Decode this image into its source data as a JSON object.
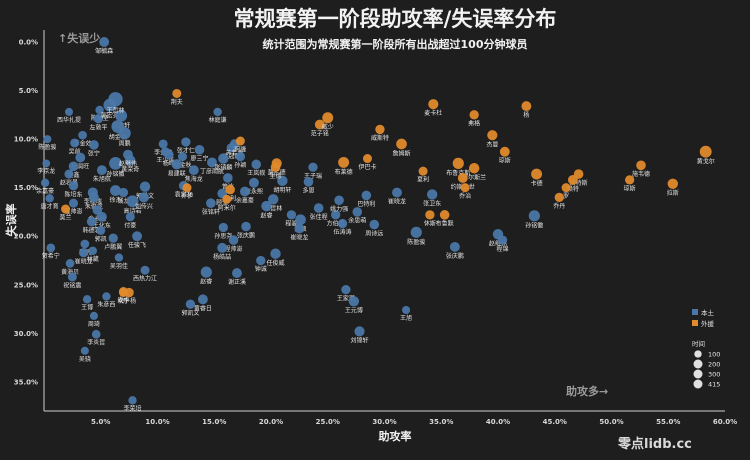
{
  "chart_data": {
    "type": "scatter",
    "title": "常规赛第一阶段助攻率/失误率分布",
    "subtitle": "统计范围为常规赛第一阶段所有出战超过100分钟球员",
    "xlabel": "助攻率",
    "ylabel": "失误率",
    "xlim": [
      0,
      60
    ],
    "ylim": [
      0,
      38
    ],
    "y_inverted": true,
    "x_ticks": [
      "5.0%",
      "10.0%",
      "15.0%",
      "20.0%",
      "25.0%",
      "30.0%",
      "35.0%",
      "40.0%",
      "45.0%",
      "50.0%",
      "55.0%",
      "60.0%"
    ],
    "y_ticks": [
      "0.0%",
      "5.0%",
      "10.0%",
      "15.0%",
      "20.0%",
      "25.0%",
      "30.0%",
      "35.0%"
    ],
    "annotations": {
      "top_left": "↑失误少",
      "bottom_right": "助攻多→"
    },
    "grid": false,
    "legend_position": "bottom-right",
    "legend": {
      "colors": [
        {
          "label": "本土",
          "color": "#4a77a8"
        },
        {
          "label": "外援",
          "color": "#e08a2c"
        }
      ],
      "size_title": "时间",
      "sizes": [
        100,
        200,
        300,
        415
      ]
    },
    "series": [
      {
        "name": "本土",
        "color": "#4a77a8",
        "points": [
          {
            "label": "邹毓森",
            "x": 5.3,
            "y": 0.0,
            "size": 180
          },
          {
            "label": "西华扎提",
            "x": 2.2,
            "y": 7.2,
            "size": 120
          },
          {
            "label": "陈林坚",
            "x": 4.9,
            "y": 7.0,
            "size": 130
          },
          {
            "label": "左敦平",
            "x": 4.8,
            "y": 7.9,
            "size": 160
          },
          {
            "label": "郭宏亮",
            "x": 5.8,
            "y": 6.5,
            "size": 300
          },
          {
            "label": "刘志轩",
            "x": 6.8,
            "y": 7.6,
            "size": 260
          },
          {
            "label": "胡金秋",
            "x": 6.5,
            "y": 8.7,
            "size": 300
          },
          {
            "label": "王哲林",
            "x": 6.3,
            "y": 5.9,
            "size": 380
          },
          {
            "label": "周鹏",
            "x": 7.1,
            "y": 9.4,
            "size": 280
          },
          {
            "label": "李金效",
            "x": 3.4,
            "y": 9.6,
            "size": 140
          },
          {
            "label": "张宁",
            "x": 4.4,
            "y": 10.6,
            "size": 170
          },
          {
            "label": "陈盈骏",
            "x": 0.3,
            "y": 10.0,
            "size": 120
          },
          {
            "label": "吴前",
            "x": 2.7,
            "y": 10.4,
            "size": 150
          },
          {
            "label": "杜润旺",
            "x": 3.2,
            "y": 11.9,
            "size": 180
          },
          {
            "label": "金鑫",
            "x": 2.6,
            "y": 12.8,
            "size": 170
          },
          {
            "label": "孙铭徽",
            "x": 6.3,
            "y": 12.5,
            "size": 300
          },
          {
            "label": "朱旭航",
            "x": 5.1,
            "y": 13.2,
            "size": 180
          },
          {
            "label": "李京龙",
            "x": 0.2,
            "y": 12.5,
            "size": 110
          },
          {
            "label": "赵岩昊",
            "x": 2.2,
            "y": 13.6,
            "size": 150
          },
          {
            "label": "黄荣奇",
            "x": 7.6,
            "y": 12.2,
            "size": 200
          },
          {
            "label": "赵继伟",
            "x": 7.4,
            "y": 11.6,
            "size": 180
          },
          {
            "label": "余嘉豪",
            "x": 0.1,
            "y": 14.5,
            "size": 130
          },
          {
            "label": "陈培东",
            "x": 2.6,
            "y": 14.8,
            "size": 160
          },
          {
            "label": "李祥瑞",
            "x": 4.3,
            "y": 15.5,
            "size": 190
          },
          {
            "label": "钱龙",
            "x": 7.0,
            "y": 15.5,
            "size": 160
          },
          {
            "label": "唐才育",
            "x": 0.5,
            "y": 16.1,
            "size": 130
          },
          {
            "label": "程帅澎",
            "x": 2.6,
            "y": 16.6,
            "size": 150
          },
          {
            "label": "朱俊龙",
            "x": 4.4,
            "y": 16.0,
            "size": 180
          },
          {
            "label": "徐杰",
            "x": 6.3,
            "y": 15.3,
            "size": 220
          },
          {
            "label": "郭昊文",
            "x": 8.9,
            "y": 14.9,
            "size": 200
          },
          {
            "label": "高诗岩",
            "x": 7.8,
            "y": 16.4,
            "size": 260
          },
          {
            "label": "刘传兴",
            "x": 8.8,
            "y": 16.0,
            "size": 190
          },
          {
            "label": "俞长栋",
            "x": 4.7,
            "y": 17.3,
            "size": 170
          },
          {
            "label": "王化东",
            "x": 5.1,
            "y": 18.0,
            "size": 180
          },
          {
            "label": "付豪",
            "x": 7.6,
            "y": 18.0,
            "size": 150
          },
          {
            "label": "韩德君",
            "x": 4.2,
            "y": 18.5,
            "size": 170
          },
          {
            "label": "郭凯",
            "x": 5.0,
            "y": 19.4,
            "size": 150
          },
          {
            "label": "卢鹏翼",
            "x": 6.1,
            "y": 20.2,
            "size": 160
          },
          {
            "label": "任骏飞",
            "x": 8.2,
            "y": 20.0,
            "size": 180
          },
          {
            "label": "张帆",
            "x": 3.6,
            "y": 20.8,
            "size": 140
          },
          {
            "label": "林葳",
            "x": 4.3,
            "y": 21.5,
            "size": 130
          },
          {
            "label": "贺希宁",
            "x": 0.6,
            "y": 21.2,
            "size": 140
          },
          {
            "label": "崔晓龙",
            "x": 3.5,
            "y": 21.7,
            "size": 160
          },
          {
            "label": "吴羽佳",
            "x": 6.6,
            "y": 22.2,
            "size": 130
          },
          {
            "label": "黄海贝",
            "x": 2.3,
            "y": 22.8,
            "size": 140
          },
          {
            "label": "祝铭震",
            "x": 2.5,
            "y": 24.2,
            "size": 150
          },
          {
            "label": "朱彦西",
            "x": 5.5,
            "y": 26.2,
            "size": 130
          },
          {
            "label": "王博",
            "x": 3.8,
            "y": 26.5,
            "size": 130
          },
          {
            "label": "周琦",
            "x": 4.4,
            "y": 28.2,
            "size": 120
          },
          {
            "label": "李炎哲",
            "x": 4.6,
            "y": 30.1,
            "size": 140
          },
          {
            "label": "吴骁",
            "x": 3.6,
            "y": 31.8,
            "size": 120
          },
          {
            "label": "西热力江",
            "x": 8.9,
            "y": 23.5,
            "size": 150
          },
          {
            "label": "李荣培",
            "x": 7.8,
            "y": 36.9,
            "size": 130
          },
          {
            "label": "林庭谦",
            "x": 15.3,
            "y": 7.2,
            "size": 130
          },
          {
            "label": "李金效2",
            "x": 10.5,
            "y": 10.5,
            "size": 150
          },
          {
            "label": "张才仁",
            "x": 12.5,
            "y": 10.3,
            "size": 160
          },
          {
            "label": "王少杰",
            "x": 10.7,
            "y": 11.3,
            "size": 150
          },
          {
            "label": "杨鸣",
            "x": 11.0,
            "y": 11.6,
            "size": 170
          },
          {
            "label": "胡金秋2",
            "x": 12.2,
            "y": 11.8,
            "size": 150
          },
          {
            "label": "廖三宁",
            "x": 13.7,
            "y": 11.1,
            "size": 170
          },
          {
            "label": "易建联",
            "x": 11.7,
            "y": 12.6,
            "size": 200
          },
          {
            "label": "吴冠希",
            "x": 16.5,
            "y": 10.9,
            "size": 160
          },
          {
            "label": "苏若禹",
            "x": 16.8,
            "y": 10.5,
            "size": 170
          },
          {
            "label": "丁彦雨航",
            "x": 14.8,
            "y": 12.4,
            "size": 180
          },
          {
            "label": "张镇麟",
            "x": 15.8,
            "y": 12.0,
            "size": 200
          },
          {
            "label": "孙颖",
            "x": 17.3,
            "y": 11.8,
            "size": 160
          },
          {
            "label": "王岚嵚",
            "x": 18.7,
            "y": 12.6,
            "size": 170
          },
          {
            "label": "焦海龙",
            "x": 13.2,
            "y": 13.2,
            "size": 180
          },
          {
            "label": "曾冰",
            "x": 16.2,
            "y": 14.0,
            "size": 170
          },
          {
            "label": "崔永熙",
            "x": 18.5,
            "y": 14.5,
            "size": 180
          },
          {
            "label": "袁堂文",
            "x": 12.3,
            "y": 14.8,
            "size": 160
          },
          {
            "label": "胡明轩",
            "x": 21.0,
            "y": 14.3,
            "size": 200
          },
          {
            "label": "顾全",
            "x": 15.7,
            "y": 15.6,
            "size": 170
          },
          {
            "label": "余嘉豪2",
            "x": 17.7,
            "y": 15.4,
            "size": 180
          },
          {
            "label": "王哲林2",
            "x": 20.2,
            "y": 16.2,
            "size": 200
          },
          {
            "label": "张铭轩",
            "x": 14.7,
            "y": 16.6,
            "size": 170
          },
          {
            "label": "赵睿",
            "x": 19.6,
            "y": 16.9,
            "size": 200
          },
          {
            "label": "孙思尧",
            "x": 15.8,
            "y": 19.1,
            "size": 160
          },
          {
            "label": "张庆鹏",
            "x": 17.8,
            "y": 19.0,
            "size": 170
          },
          {
            "label": "程帅澎2",
            "x": 16.7,
            "y": 20.4,
            "size": 170
          },
          {
            "label": "杨皓喆",
            "x": 15.7,
            "y": 21.2,
            "size": 180
          },
          {
            "label": "任俊威",
            "x": 20.4,
            "y": 21.8,
            "size": 200
          },
          {
            "label": "谢正溪",
            "x": 17.0,
            "y": 23.8,
            "size": 180
          },
          {
            "label": "钟诚",
            "x": 19.1,
            "y": 22.5,
            "size": 160
          },
          {
            "label": "赵睿2",
            "x": 14.3,
            "y": 23.7,
            "size": 230
          },
          {
            "label": "黄睿日",
            "x": 14.0,
            "y": 26.5,
            "size": 180
          },
          {
            "label": "郭凯文",
            "x": 12.9,
            "y": 27.0,
            "size": 160
          },
          {
            "label": "王子瑞",
            "x": 23.7,
            "y": 12.9,
            "size": 160
          },
          {
            "label": "多恩",
            "x": 23.3,
            "y": 14.4,
            "size": 170
          },
          {
            "label": "张佳程",
            "x": 24.2,
            "y": 17.1,
            "size": 170
          },
          {
            "label": "程骏",
            "x": 21.8,
            "y": 17.8,
            "size": 160
          },
          {
            "label": "方硕",
            "x": 22.6,
            "y": 18.3,
            "size": 210
          },
          {
            "label": "崔晓龙2",
            "x": 22.5,
            "y": 19.2,
            "size": 180
          },
          {
            "label": "方伯晨",
            "x": 25.7,
            "y": 17.8,
            "size": 160
          },
          {
            "label": "伍涛涛",
            "x": 26.3,
            "y": 18.7,
            "size": 160
          },
          {
            "label": "余思萌",
            "x": 27.6,
            "y": 17.5,
            "size": 170
          },
          {
            "label": "周诗远",
            "x": 29.1,
            "y": 18.8,
            "size": 170
          },
          {
            "label": "姚力强",
            "x": 26.0,
            "y": 16.3,
            "size": 170
          },
          {
            "label": "巴特利",
            "x": 28.4,
            "y": 15.8,
            "size": 170
          },
          {
            "label": "王家琨",
            "x": 26.6,
            "y": 25.5,
            "size": 160
          },
          {
            "label": "王元博",
            "x": 27.3,
            "y": 26.7,
            "size": 200
          },
          {
            "label": "刘锦轩",
            "x": 27.8,
            "y": 29.8,
            "size": 190
          },
          {
            "label": "王旭",
            "x": 31.9,
            "y": 27.6,
            "size": 120
          },
          {
            "label": "崔晓龙3",
            "x": 31.1,
            "y": 15.5,
            "size": 180
          },
          {
            "label": "陈盈骏2",
            "x": 32.8,
            "y": 19.6,
            "size": 230
          },
          {
            "label": "张卫东",
            "x": 34.2,
            "y": 15.7,
            "size": 200
          },
          {
            "label": "张庆鹏2",
            "x": 36.2,
            "y": 21.1,
            "size": 180
          },
          {
            "label": "孙铭徽2",
            "x": 43.2,
            "y": 17.9,
            "size": 230
          },
          {
            "label": "赵继伟2",
            "x": 40.0,
            "y": 19.8,
            "size": 200
          },
          {
            "label": "程锦",
            "x": 40.4,
            "y": 20.4,
            "size": 160
          }
        ]
      },
      {
        "name": "外援",
        "color": "#e08a2c",
        "points": [
          {
            "label": "荆夫",
            "x": 11.7,
            "y": 5.3,
            "size": 150
          },
          {
            "label": "范子铭",
            "x": 24.3,
            "y": 8.5,
            "size": 180
          },
          {
            "label": "威少",
            "x": 25.0,
            "y": 7.8,
            "size": 220
          },
          {
            "label": "威斯特",
            "x": 29.6,
            "y": 9.0,
            "size": 160
          },
          {
            "label": "詹姆斯",
            "x": 31.5,
            "y": 10.5,
            "size": 210
          },
          {
            "label": "麦卡杜",
            "x": 34.3,
            "y": 6.4,
            "size": 190
          },
          {
            "label": "弗格",
            "x": 37.9,
            "y": 7.5,
            "size": 160
          },
          {
            "label": "杨",
            "x": 42.5,
            "y": 6.6,
            "size": 180
          },
          {
            "label": "杰曼",
            "x": 39.5,
            "y": 9.6,
            "size": 190
          },
          {
            "label": "琼斯",
            "x": 40.6,
            "y": 11.3,
            "size": 180
          },
          {
            "label": "阿尔斯兰",
            "x": 37.9,
            "y": 13.0,
            "size": 200
          },
          {
            "label": "布鲁克斯",
            "x": 36.5,
            "y": 12.5,
            "size": 230
          },
          {
            "label": "卡德",
            "x": 43.4,
            "y": 13.6,
            "size": 220
          },
          {
            "label": "沃特斯",
            "x": 47.1,
            "y": 13.6,
            "size": 170
          },
          {
            "label": "施韦德",
            "x": 52.6,
            "y": 12.7,
            "size": 170
          },
          {
            "label": "莫兰德",
            "x": 20.5,
            "y": 12.5,
            "size": 190
          },
          {
            "label": "布莱德",
            "x": 26.4,
            "y": 12.4,
            "size": 220
          },
          {
            "label": "夏利",
            "x": 33.4,
            "y": 13.3,
            "size": 150
          },
          {
            "label": "约斯二世",
            "x": 36.9,
            "y": 14.0,
            "size": 180
          },
          {
            "label": "乔治",
            "x": 37.1,
            "y": 15.0,
            "size": 150
          },
          {
            "label": "布鲁默",
            "x": 35.3,
            "y": 17.8,
            "size": 170
          },
          {
            "label": "休斯",
            "x": 34.0,
            "y": 17.8,
            "size": 160
          },
          {
            "label": "赖特",
            "x": 46.6,
            "y": 14.2,
            "size": 180
          },
          {
            "label": "乔丹",
            "x": 45.4,
            "y": 16.0,
            "size": 160
          },
          {
            "label": "罗",
            "x": 46.0,
            "y": 15.0,
            "size": 150
          },
          {
            "label": "琼斯2",
            "x": 51.6,
            "y": 14.2,
            "size": 160
          },
          {
            "label": "黄戈尔",
            "x": 58.3,
            "y": 11.3,
            "size": 260
          },
          {
            "label": "拉斯",
            "x": 55.4,
            "y": 14.6,
            "size": 200
          },
          {
            "label": "马利",
            "x": 16.4,
            "y": 15.2,
            "size": 170
          },
          {
            "label": "乔伊",
            "x": 12.6,
            "y": 15.0,
            "size": 150
          },
          {
            "label": "阿米尔",
            "x": 16.1,
            "y": 16.2,
            "size": 150
          },
          {
            "label": "坎宁",
            "x": 7.0,
            "y": 25.8,
            "size": 150
          },
          {
            "label": "乔·杨",
            "x": 7.5,
            "y": 25.8,
            "size": 160
          },
          {
            "label": "莫兰",
            "x": 1.9,
            "y": 17.2,
            "size": 150
          },
          {
            "label": "麦卡",
            "x": 7.0,
            "y": 25.7,
            "size": 150
          },
          {
            "label": "里德",
            "x": 20.4,
            "y": 12.9,
            "size": 170
          },
          {
            "label": "伊巴卡",
            "x": 28.5,
            "y": 12.0,
            "size": 150
          },
          {
            "label": "阿隆",
            "x": 17.3,
            "y": 10.2,
            "size": 150
          }
        ]
      }
    ]
  }
}
